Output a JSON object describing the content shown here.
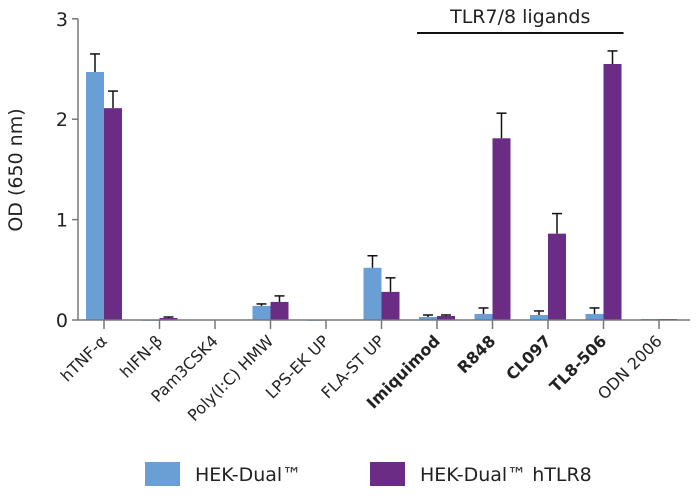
{
  "chart_data": {
    "type": "bar",
    "title": "",
    "ylabel": "OD (650 nm)",
    "xlabel": "",
    "ylim": [
      0,
      3
    ],
    "yticks": [
      0,
      1,
      2,
      3
    ],
    "grid": false,
    "legend_position": "bottom",
    "categories": [
      "hTNF-α",
      "hIFN-β",
      "Pam3CSK4",
      "Poly(I:C) HMW",
      "LPS-EK UP",
      "FLA-ST UP",
      "Imiquimod",
      "R848",
      "CL097",
      "TL8-506",
      "ODN 2006"
    ],
    "bold_categories": [
      "Imiquimod",
      "R848",
      "CL097",
      "TL8-506"
    ],
    "series": [
      {
        "name": "HEK-Dual™",
        "color": "#6a9fd6",
        "values": [
          2.47,
          0.0,
          0.005,
          0.14,
          0.0,
          0.52,
          0.03,
          0.06,
          0.05,
          0.06,
          0.01
        ],
        "errors": [
          0.18,
          0.0,
          0.0,
          0.02,
          0.0,
          0.12,
          0.02,
          0.06,
          0.04,
          0.06,
          0.0
        ]
      },
      {
        "name": "HEK-Dual™ hTLR8",
        "color": "#6b2c86",
        "values": [
          2.11,
          0.02,
          0.005,
          0.18,
          0.005,
          0.28,
          0.04,
          1.81,
          0.86,
          2.55,
          0.01
        ],
        "errors": [
          0.17,
          0.01,
          0.0,
          0.06,
          0.0,
          0.14,
          0.01,
          0.25,
          0.2,
          0.13,
          0.0
        ]
      }
    ],
    "annotation": {
      "text": "TLR7/8 ligands",
      "spans": [
        "Imiquimod",
        "TL8-506"
      ]
    }
  }
}
